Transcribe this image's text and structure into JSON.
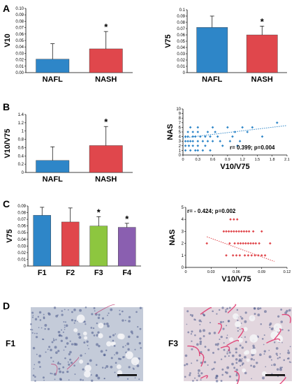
{
  "panel_labels": {
    "A": "A",
    "B": "B",
    "C": "C",
    "D": "D"
  },
  "colors": {
    "nafl": "#2e86c8",
    "nash": "#e0474c",
    "f1": "#2e86c8",
    "f2": "#e0474c",
    "f3": "#8dc63f",
    "f4": "#8a5fb0",
    "scatter_b": "#2e86c8",
    "scatter_c": "#e0474c"
  },
  "chart_data": [
    {
      "id": "A_left",
      "type": "bar",
      "ylabel": "V10",
      "categories": [
        "NAFL",
        "NASH"
      ],
      "values": [
        0.021,
        0.037
      ],
      "errors": [
        0.024,
        0.027
      ],
      "significant": [
        false,
        true
      ],
      "star": "*",
      "ylim": [
        0,
        0.1
      ],
      "yticks": [
        "0.00",
        "0.01",
        "0.02",
        "0.03",
        "0.04",
        "0.05",
        "0.06",
        "0.07",
        "0.08",
        "0.09",
        "0.10"
      ]
    },
    {
      "id": "A_right",
      "type": "bar",
      "ylabel": "V75",
      "categories": [
        "NAFL",
        "NASH"
      ],
      "values": [
        0.072,
        0.06
      ],
      "errors": [
        0.018,
        0.014
      ],
      "significant": [
        false,
        true
      ],
      "star": "*",
      "ylim": [
        0,
        0.1
      ],
      "yticks": [
        "0",
        "0.01",
        "0.02",
        "0.03",
        "0.04",
        "0.05",
        "0.06",
        "0.07",
        "0.08",
        "0.09",
        "0.1"
      ]
    },
    {
      "id": "B_left",
      "type": "bar",
      "ylabel": "V10/V75",
      "categories": [
        "NAFL",
        "NASH"
      ],
      "values": [
        0.29,
        0.65
      ],
      "errors": [
        0.33,
        0.46
      ],
      "significant": [
        false,
        true
      ],
      "star": "*",
      "ylim": [
        0,
        1.4
      ],
      "yticks": [
        "0",
        "0.2",
        "0.4",
        "0.6",
        "0.8",
        "1",
        "1.2",
        "1.4"
      ]
    },
    {
      "id": "B_right",
      "type": "scatter",
      "xlabel": "V10/V75",
      "ylabel": "NAS",
      "annotation": "r= 0.399; p=0.004",
      "xlim": [
        0,
        2.1
      ],
      "ylim": [
        0,
        10
      ],
      "xticks": [
        "0",
        "0.3",
        "0.6",
        "0.9",
        "1.2",
        "1.5",
        "1.8",
        "2.1"
      ],
      "yticks": [
        "0",
        "1",
        "2",
        "3",
        "4",
        "5",
        "6",
        "7",
        "8",
        "9",
        "10"
      ],
      "trend": [
        [
          0,
          3.7
        ],
        [
          2.1,
          6.4
        ]
      ],
      "points": [
        [
          0.05,
          1
        ],
        [
          0.15,
          1
        ],
        [
          0.25,
          1
        ],
        [
          0.3,
          1
        ],
        [
          0.4,
          1
        ],
        [
          0.55,
          1
        ],
        [
          0.05,
          2
        ],
        [
          0.12,
          2
        ],
        [
          0.2,
          2
        ],
        [
          0.3,
          2
        ],
        [
          0.45,
          2
        ],
        [
          0.8,
          2
        ],
        [
          1.1,
          2
        ],
        [
          0.05,
          3
        ],
        [
          0.1,
          3
        ],
        [
          0.15,
          3
        ],
        [
          0.2,
          3
        ],
        [
          0.3,
          3
        ],
        [
          0.4,
          3
        ],
        [
          0.5,
          3
        ],
        [
          0.6,
          3
        ],
        [
          0.75,
          3
        ],
        [
          0.95,
          3
        ],
        [
          1.15,
          3
        ],
        [
          0.05,
          4
        ],
        [
          0.1,
          4
        ],
        [
          0.2,
          4
        ],
        [
          0.25,
          4
        ],
        [
          0.35,
          4
        ],
        [
          0.45,
          4
        ],
        [
          0.55,
          4
        ],
        [
          0.7,
          4
        ],
        [
          1.0,
          4
        ],
        [
          1.6,
          4
        ],
        [
          0.1,
          5
        ],
        [
          0.2,
          5
        ],
        [
          0.3,
          5
        ],
        [
          0.5,
          5
        ],
        [
          0.65,
          5
        ],
        [
          1.05,
          5
        ],
        [
          1.3,
          5
        ],
        [
          0.15,
          6
        ],
        [
          0.3,
          6
        ],
        [
          0.6,
          6
        ],
        [
          0.9,
          6
        ],
        [
          1.2,
          6
        ],
        [
          1.4,
          6
        ],
        [
          1.9,
          7
        ]
      ]
    },
    {
      "id": "C_left",
      "type": "bar",
      "ylabel": "V75",
      "categories": [
        "F1",
        "F2",
        "F3",
        "F4"
      ],
      "values": [
        0.076,
        0.066,
        0.06,
        0.058
      ],
      "errors": [
        0.012,
        0.021,
        0.014,
        0.006
      ],
      "significant": [
        false,
        false,
        true,
        true
      ],
      "star": "*",
      "ylim": [
        0,
        0.09
      ],
      "yticks": [
        "0",
        "0.01",
        "0.02",
        "0.03",
        "0.04",
        "0.05",
        "0.06",
        "0.07",
        "0.08",
        "0.09"
      ]
    },
    {
      "id": "C_right",
      "type": "scatter",
      "xlabel": "V10/V75",
      "ylabel": "NAS",
      "annotation": "r= - 0.424; p=0.002",
      "xlim": [
        0,
        0.12
      ],
      "ylim": [
        0,
        5
      ],
      "xticks": [
        "0",
        "0.03",
        "0.06",
        "0.09",
        "0.12"
      ],
      "yticks": [
        "0",
        "1",
        "2",
        "3",
        "4",
        "5"
      ],
      "trend": [
        [
          0.025,
          2.55
        ],
        [
          0.105,
          0.5
        ]
      ],
      "points": [
        [
          0.053,
          4
        ],
        [
          0.057,
          4
        ],
        [
          0.061,
          4
        ],
        [
          0.045,
          3
        ],
        [
          0.048,
          3
        ],
        [
          0.051,
          3
        ],
        [
          0.054,
          3
        ],
        [
          0.057,
          3
        ],
        [
          0.06,
          3
        ],
        [
          0.063,
          3
        ],
        [
          0.066,
          3
        ],
        [
          0.069,
          3
        ],
        [
          0.072,
          3
        ],
        [
          0.075,
          3
        ],
        [
          0.08,
          3
        ],
        [
          0.09,
          3
        ],
        [
          0.025,
          2
        ],
        [
          0.052,
          2
        ],
        [
          0.058,
          2
        ],
        [
          0.062,
          2
        ],
        [
          0.065,
          2
        ],
        [
          0.068,
          2
        ],
        [
          0.071,
          2
        ],
        [
          0.074,
          2
        ],
        [
          0.077,
          2
        ],
        [
          0.08,
          2
        ],
        [
          0.083,
          2
        ],
        [
          0.087,
          2
        ],
        [
          0.1,
          2
        ],
        [
          0.048,
          1
        ],
        [
          0.056,
          1
        ],
        [
          0.06,
          1
        ],
        [
          0.064,
          1
        ],
        [
          0.07,
          1
        ],
        [
          0.074,
          1
        ],
        [
          0.078,
          1
        ],
        [
          0.082,
          1
        ],
        [
          0.086,
          1
        ],
        [
          0.09,
          1
        ],
        [
          0.094,
          1
        ]
      ]
    }
  ],
  "micrographs": [
    {
      "label": "F1",
      "tint": "#b9c3d6",
      "fiber": "#c0396e"
    },
    {
      "label": "F3",
      "tint": "#d9c8d6",
      "fiber": "#e0306a"
    }
  ]
}
